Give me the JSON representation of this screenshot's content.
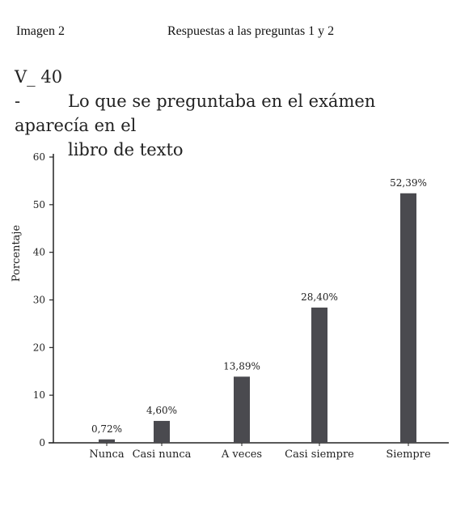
{
  "header": {
    "left": "Imagen 2",
    "center": "Respuestas a las preguntas 1 y 2"
  },
  "chart_data": {
    "type": "bar",
    "title_prefix": "V_ 40 -",
    "title_line1": "Lo que se preguntaba en el exámen aparecía en el",
    "title_line2": "libro de texto",
    "xlabel": "",
    "ylabel": "Porcentaje",
    "ylim": [
      0,
      60
    ],
    "yticks": [
      "0",
      "10",
      "20",
      "30",
      "40",
      "50",
      "60"
    ],
    "categories": [
      "Nunca",
      "Casi nunca",
      "A veces",
      "Casi siempre",
      "Siempre"
    ],
    "values": [
      0.72,
      4.6,
      13.89,
      28.4,
      52.39
    ],
    "value_labels": [
      "0,72%",
      "4,60%",
      "13,89%",
      "28,40%",
      "52,39%"
    ],
    "bar_color": "#4a4a4f",
    "grid": false
  }
}
